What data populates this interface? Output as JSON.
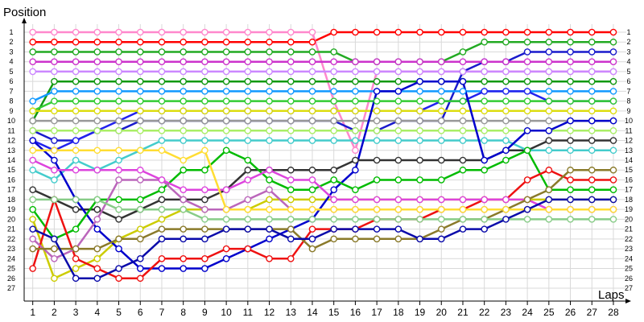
{
  "chart_data": {
    "type": "line",
    "ylabel": "Position",
    "xlabel": "Laps",
    "x_ticks": [
      1,
      2,
      3,
      4,
      5,
      6,
      7,
      8,
      9,
      10,
      11,
      12,
      13,
      14,
      15,
      16,
      17,
      18,
      19,
      20,
      21,
      22,
      23,
      24,
      25,
      26,
      27,
      28
    ],
    "y_ticks": [
      1,
      2,
      3,
      4,
      5,
      6,
      7,
      8,
      9,
      10,
      11,
      12,
      13,
      14,
      15,
      16,
      17,
      18,
      19,
      20,
      21,
      22,
      23,
      24,
      25,
      26,
      27
    ],
    "xlim": [
      0.6,
      28.6
    ],
    "ylim": [
      1,
      27
    ],
    "y_inverted": true,
    "grid": true,
    "series": [
      {
        "color": "#ff0000",
        "values": [
          2,
          2,
          2,
          2,
          2,
          2,
          2,
          2,
          2,
          2,
          2,
          2,
          2,
          2,
          1,
          1,
          1,
          1,
          1,
          1,
          1,
          1,
          1,
          1,
          1,
          1,
          1,
          1
        ]
      },
      {
        "color": "#ff88cc",
        "values": [
          1,
          1,
          1,
          1,
          1,
          1,
          1,
          1,
          1,
          1,
          1,
          1,
          1,
          1,
          8,
          13,
          5,
          5,
          5,
          5,
          5,
          5,
          5,
          5,
          5,
          5,
          5,
          5
        ]
      },
      {
        "color": "#22aa22",
        "values": [
          3,
          3,
          3,
          3,
          3,
          3,
          3,
          3,
          3,
          3,
          3,
          3,
          3,
          3,
          3,
          4,
          4,
          4,
          4,
          4,
          3,
          2,
          2,
          2,
          2,
          2,
          2,
          2
        ]
      },
      {
        "color": "#1a1acc",
        "values": [
          11,
          12,
          12,
          11,
          11,
          10,
          10,
          10,
          10,
          10,
          10,
          10,
          10,
          10,
          10,
          11,
          11,
          10,
          10,
          10,
          5,
          4,
          4,
          3,
          3,
          3,
          3,
          3
        ]
      },
      {
        "color": "#cc33cc",
        "values": [
          4,
          4,
          4,
          4,
          4,
          4,
          4,
          4,
          4,
          4,
          4,
          4,
          4,
          4,
          4,
          4,
          4,
          4,
          4,
          4,
          4,
          4,
          4,
          4,
          4,
          4,
          4,
          4
        ]
      },
      {
        "color": "#cc88ff",
        "values": [
          5,
          5,
          5,
          5,
          5,
          5,
          5,
          5,
          5,
          5,
          5,
          5,
          5,
          5,
          5,
          5,
          5,
          5,
          5,
          5,
          5,
          5,
          5,
          5,
          5,
          5,
          5,
          5
        ]
      },
      {
        "color": "#119911",
        "values": [
          10,
          6,
          6,
          6,
          6,
          6,
          6,
          6,
          6,
          6,
          6,
          6,
          6,
          6,
          6,
          6,
          6,
          6,
          6,
          6,
          6,
          6,
          6,
          6,
          6,
          6,
          6,
          6
        ]
      },
      {
        "color": "#1199ff",
        "values": [
          8,
          7,
          7,
          7,
          7,
          7,
          7,
          7,
          7,
          7,
          7,
          7,
          7,
          7,
          7,
          7,
          7,
          7,
          7,
          7,
          7,
          7,
          7,
          7,
          7,
          7,
          7,
          7
        ]
      },
      {
        "color": "#2222ee",
        "values": [
          12,
          13,
          12,
          11,
          10,
          9,
          9,
          9,
          9,
          9,
          9,
          9,
          9,
          9,
          9,
          9,
          9,
          9,
          9,
          8,
          8,
          7,
          7,
          7,
          8,
          8,
          8,
          8
        ]
      },
      {
        "color": "#33cc33",
        "values": [
          9,
          8,
          8,
          8,
          8,
          8,
          8,
          8,
          8,
          8,
          8,
          8,
          8,
          8,
          8,
          8,
          8,
          8,
          8,
          8,
          8,
          8,
          8,
          8,
          8,
          8,
          8,
          8
        ]
      },
      {
        "color": "#dddd11",
        "values": [
          9,
          9,
          9,
          9,
          9,
          9,
          9,
          9,
          9,
          9,
          9,
          9,
          9,
          9,
          9,
          9,
          9,
          9,
          9,
          9,
          9,
          9,
          9,
          9,
          9,
          9,
          9,
          9
        ]
      },
      {
        "color": "#999999",
        "values": [
          10,
          10,
          10,
          10,
          10,
          10,
          10,
          10,
          10,
          10,
          10,
          10,
          10,
          10,
          10,
          10,
          10,
          10,
          10,
          10,
          10,
          10,
          10,
          10,
          10,
          10,
          10,
          10
        ]
      },
      {
        "color": "#aaee66",
        "values": [
          11,
          11,
          11,
          11,
          11,
          11,
          11,
          11,
          11,
          11,
          11,
          11,
          11,
          11,
          11,
          11,
          11,
          11,
          11,
          11,
          11,
          11,
          11,
          11,
          11,
          11,
          11,
          11
        ]
      },
      {
        "color": "#333333",
        "values": [
          17,
          18,
          19,
          19,
          20,
          19,
          18,
          18,
          18,
          17,
          15,
          15,
          15,
          15,
          15,
          14,
          14,
          14,
          14,
          14,
          14,
          14,
          13,
          13,
          12,
          12,
          12,
          12
        ]
      },
      {
        "color": "#44cccc",
        "values": [
          15,
          16,
          14,
          15,
          14,
          13,
          12,
          12,
          12,
          12,
          12,
          12,
          12,
          12,
          12,
          12,
          12,
          12,
          12,
          12,
          12,
          12,
          12,
          13,
          13,
          13,
          13,
          13
        ]
      },
      {
        "color": "#cccc00",
        "values": [
          20,
          26,
          25,
          24,
          22,
          21,
          20,
          19,
          19,
          19,
          19,
          18,
          18,
          18,
          18,
          18,
          18,
          18,
          18,
          18,
          18,
          18,
          18,
          18,
          18,
          18,
          18,
          18
        ]
      },
      {
        "color": "#0000cc",
        "values": [
          12,
          14,
          18,
          21,
          23,
          25,
          25,
          25,
          25,
          24,
          23,
          22,
          21,
          20,
          17,
          15,
          7,
          7,
          6,
          6,
          6,
          14,
          13,
          11,
          11,
          10,
          10,
          10
        ]
      },
      {
        "color": "#00bb00",
        "values": [
          19,
          22,
          21,
          18,
          18,
          18,
          17,
          15,
          15,
          13,
          14,
          16,
          17,
          17,
          16,
          17,
          16,
          16,
          16,
          16,
          15,
          15,
          14,
          13,
          17,
          17,
          17,
          17
        ]
      },
      {
        "color": "#ee1111",
        "values": [
          25,
          18,
          24,
          25,
          26,
          26,
          24,
          24,
          24,
          23,
          23,
          24,
          24,
          21,
          21,
          21,
          20,
          20,
          20,
          19,
          19,
          18,
          18,
          16,
          15,
          16,
          16,
          16
        ]
      },
      {
        "color": "#bb66bb",
        "values": [
          22,
          24,
          23,
          20,
          16,
          16,
          16,
          18,
          19,
          19,
          18,
          17,
          19,
          19,
          19,
          19,
          19,
          19,
          19,
          19,
          19,
          19,
          19,
          19,
          19,
          19,
          19,
          19
        ]
      },
      {
        "color": "#dd44dd",
        "values": [
          14,
          15,
          15,
          15,
          15,
          15,
          16,
          17,
          17,
          17,
          16,
          15,
          16,
          16,
          18,
          18,
          18,
          18,
          18,
          18,
          18,
          18,
          18,
          18,
          19,
          19,
          19,
          19
        ]
      },
      {
        "color": "#8a7a2a",
        "values": [
          23,
          23,
          23,
          23,
          22,
          22,
          21,
          21,
          21,
          21,
          21,
          21,
          21,
          23,
          22,
          22,
          22,
          22,
          22,
          21,
          20,
          20,
          19,
          18,
          17,
          15,
          15,
          15
        ]
      },
      {
        "color": "#88cc88",
        "values": [
          18,
          18,
          18,
          18,
          19,
          19,
          19,
          19,
          20,
          20,
          20,
          20,
          20,
          20,
          20,
          20,
          20,
          20,
          20,
          20,
          20,
          20,
          20,
          20,
          20,
          20,
          20,
          20
        ]
      },
      {
        "color": "#ffdd33",
        "values": [
          13,
          13,
          13,
          13,
          13,
          13,
          13,
          14,
          13,
          19,
          19,
          19,
          19,
          19,
          19,
          19,
          19,
          19,
          19,
          19,
          19,
          19,
          19,
          19,
          19,
          19,
          19,
          19
        ]
      },
      {
        "color": "#0a0aaa",
        "values": [
          21,
          22,
          26,
          26,
          25,
          24,
          22,
          22,
          22,
          21,
          21,
          21,
          22,
          22,
          21,
          21,
          21,
          21,
          22,
          22,
          21,
          21,
          20,
          19,
          18,
          18,
          18,
          18
        ]
      }
    ]
  }
}
